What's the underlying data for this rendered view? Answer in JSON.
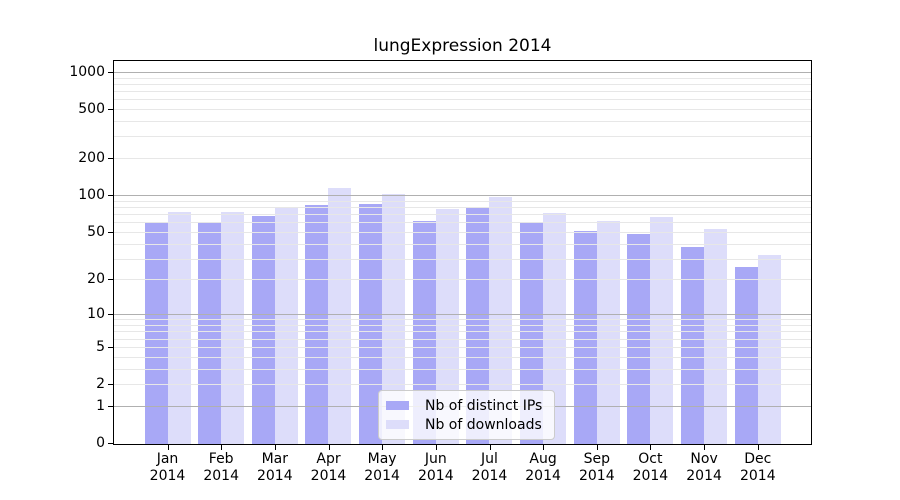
{
  "figure": {
    "title": "lungExpression 2014"
  },
  "chart_data": {
    "type": "bar",
    "title": "lungExpression 2014",
    "scale": "log1p",
    "categories": [
      "Jan 2014",
      "Feb 2014",
      "Mar 2014",
      "Apr 2014",
      "May 2014",
      "Jun 2014",
      "Jul 2014",
      "Aug 2014",
      "Sep 2014",
      "Oct 2014",
      "Nov 2014",
      "Dec 2014"
    ],
    "x_tick_line1": [
      "Jan",
      "Feb",
      "Mar",
      "Apr",
      "May",
      "Jun",
      "Jul",
      "Aug",
      "Sep",
      "Oct",
      "Nov",
      "Dec"
    ],
    "x_tick_line2": "2014",
    "series": [
      {
        "name": "Nb of distinct IPs",
        "color": "#a8a8f6",
        "values": [
          61,
          60,
          69,
          84,
          86,
          62,
          81,
          60,
          52,
          49,
          38,
          26
        ]
      },
      {
        "name": "Nb of downloads",
        "color": "#ddddfa",
        "values": [
          74,
          74,
          81,
          116,
          105,
          79,
          99,
          73,
          62,
          67,
          54,
          33
        ]
      }
    ],
    "y_ticks": [
      0,
      1,
      2,
      5,
      10,
      20,
      50,
      100,
      200,
      500,
      1000
    ],
    "ylim": [
      0,
      1300
    ],
    "grid": "on",
    "legend_position": "lower center",
    "colors": {
      "major_grid": "#b0b0b0",
      "minor_grid": "#e7e7e7",
      "axis": "#000000",
      "background": "#ffffff",
      "legend_border": "#cccccc",
      "bar_dark": "#a8a8f6",
      "bar_light": "#ddddfa"
    }
  }
}
